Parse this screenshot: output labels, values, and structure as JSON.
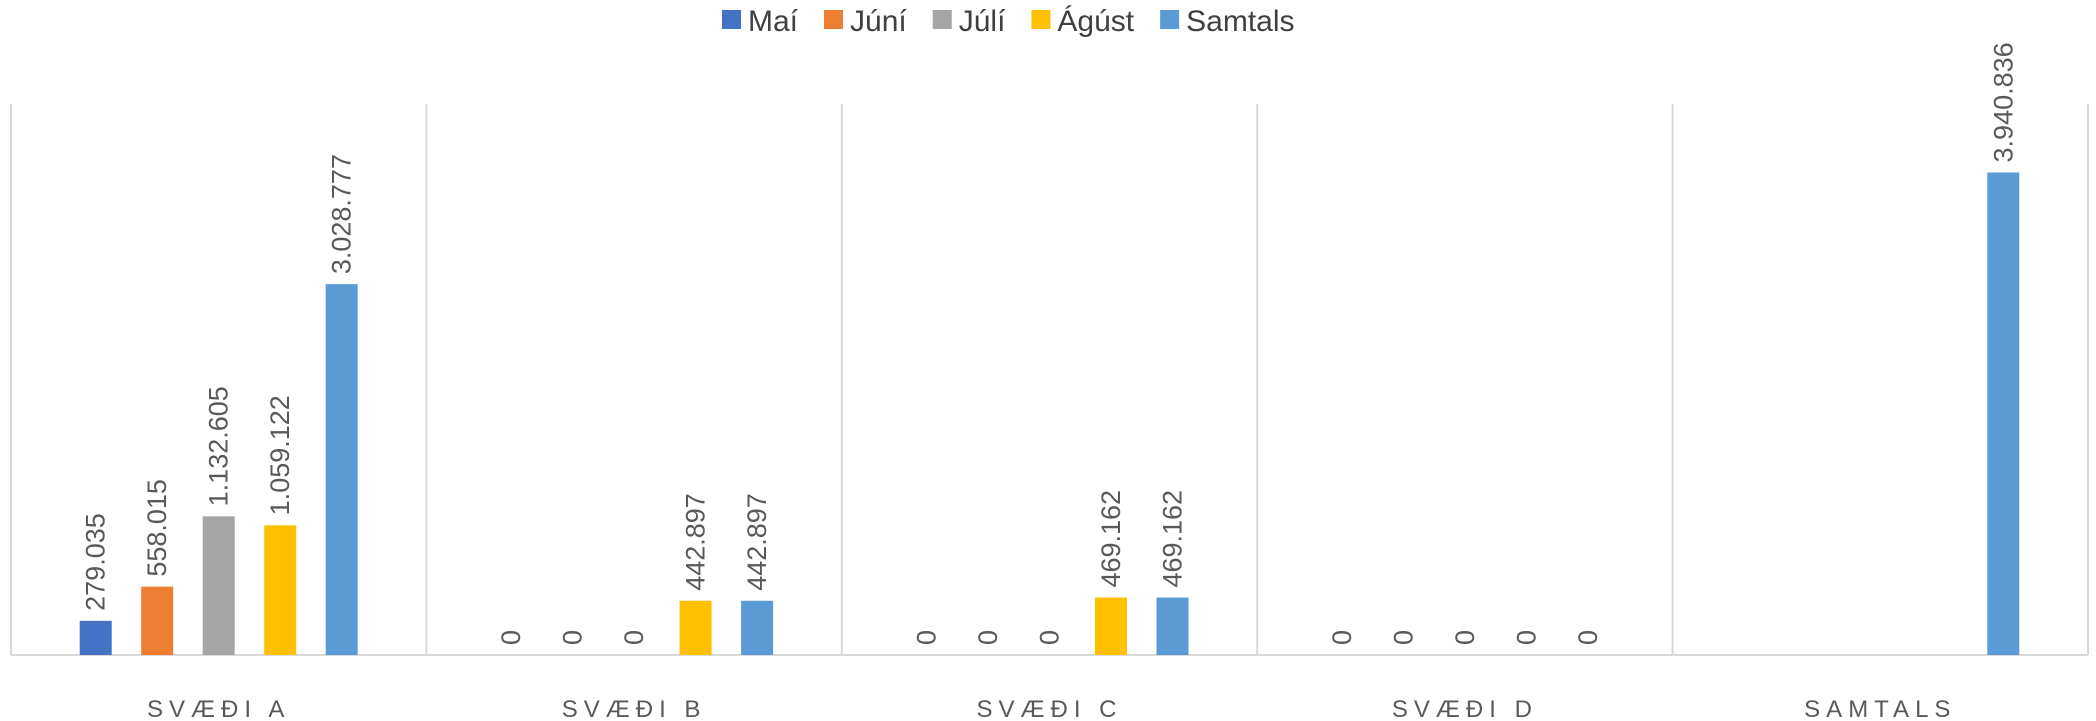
{
  "chart_data": {
    "type": "bar",
    "categories": [
      "SVÆÐI A",
      "SVÆÐI B",
      "SVÆÐI C",
      "SVÆÐI D",
      "SAMTALS"
    ],
    "series": [
      {
        "name": "Maí",
        "color": "#4472c4",
        "values": [
          279035,
          0,
          0,
          0,
          null
        ],
        "value_labels": [
          "279.035",
          "0",
          "0",
          "0",
          null
        ]
      },
      {
        "name": "Júní",
        "color": "#ed7d31",
        "values": [
          558015,
          0,
          0,
          0,
          null
        ],
        "value_labels": [
          "558.015",
          "0",
          "0",
          "0",
          null
        ]
      },
      {
        "name": "Júlí",
        "color": "#a5a5a5",
        "values": [
          1132605,
          0,
          0,
          0,
          null
        ],
        "value_labels": [
          "1.132.605",
          "0",
          "0",
          "0",
          null
        ]
      },
      {
        "name": "Ágúst",
        "color": "#ffc000",
        "values": [
          1059122,
          442897,
          469162,
          0,
          null
        ],
        "value_labels": [
          "1.059.122",
          "442.897",
          "469.162",
          "0",
          null
        ]
      },
      {
        "name": "Samtals",
        "color": "#5b9bd5",
        "values": [
          3028777,
          442897,
          469162,
          0,
          3940836
        ],
        "value_labels": [
          "3.028.777",
          "442.897",
          "469.162",
          "0",
          "3.940.836"
        ]
      }
    ],
    "ylim": [
      0,
      4500000
    ],
    "legend": "top"
  }
}
